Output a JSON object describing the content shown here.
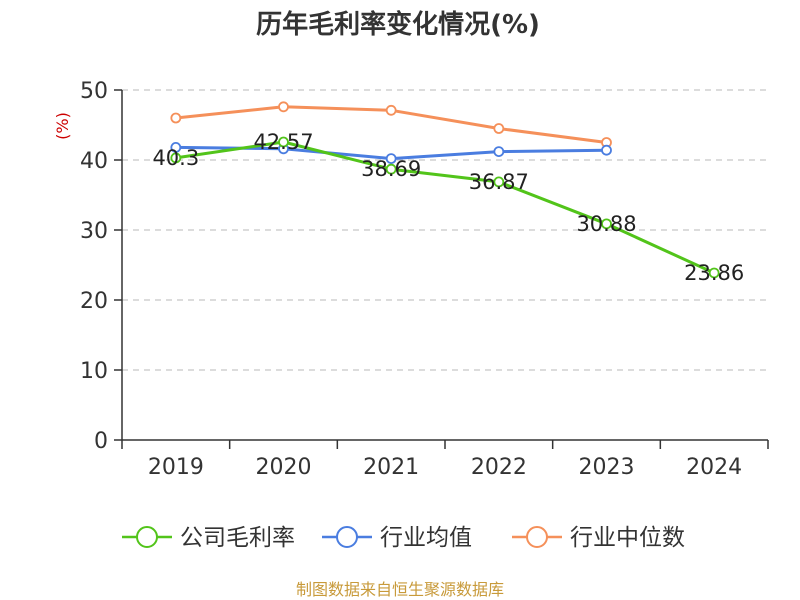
{
  "chart_data": {
    "type": "line",
    "title": "历年毛利率变化情况(%)",
    "ylabel": "(%)",
    "xlabel": "",
    "categories": [
      "2019",
      "2020",
      "2021",
      "2022",
      "2023",
      "2024"
    ],
    "ylim": [
      0,
      50
    ],
    "yticks": [
      0,
      10,
      20,
      30,
      40,
      50
    ],
    "grid": true,
    "legend_position": "bottom",
    "series": [
      {
        "name": "公司毛利率",
        "values": [
          40.3,
          42.57,
          38.69,
          36.87,
          30.88,
          23.86
        ],
        "color": "#52c41a",
        "data_labels": [
          "40.3",
          "42.57",
          "38.69",
          "36.87",
          "30.88",
          "23.86"
        ]
      },
      {
        "name": "行业均值",
        "values": [
          41.8,
          41.6,
          40.2,
          41.2,
          41.4,
          null
        ],
        "color": "#4a7de0"
      },
      {
        "name": "行业中位数",
        "values": [
          46.0,
          47.6,
          47.1,
          44.5,
          42.5,
          null
        ],
        "color": "#f5905a"
      }
    ]
  },
  "source_text": "制图数据来自恒生聚源数据库",
  "source_color": "#c89a3a"
}
